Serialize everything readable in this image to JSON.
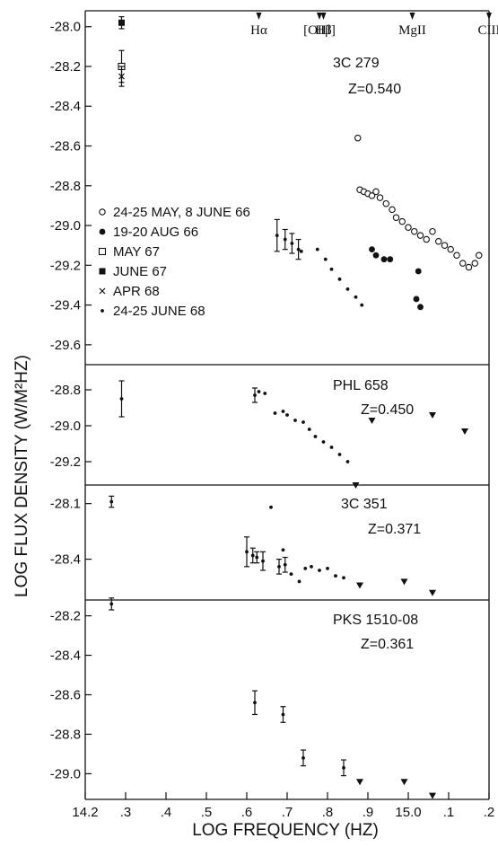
{
  "figure": {
    "xlabel": "LOG FREQUENCY (HZ)",
    "ylabel": "LOG FLUX DENSITY (W/M²HZ)",
    "x_ticks": [
      {
        "v": 14.2,
        "label": "14.2"
      },
      {
        "v": 14.3,
        "label": ".3"
      },
      {
        "v": 14.4,
        "label": ".4"
      },
      {
        "v": 14.5,
        "label": ".5"
      },
      {
        "v": 14.6,
        "label": ".6"
      },
      {
        "v": 14.7,
        "label": ".7"
      },
      {
        "v": 14.8,
        "label": ".8"
      },
      {
        "v": 14.9,
        "label": ".9"
      },
      {
        "v": 15.0,
        "label": "15.0"
      },
      {
        "v": 15.1,
        "label": ".1"
      },
      {
        "v": 15.2,
        "label": ".2"
      }
    ],
    "emission_lines": [
      {
        "label": "Hα",
        "x": 14.63
      },
      {
        "label": "[OIII]",
        "x": 14.78
      },
      {
        "label": "Hβ",
        "x": 14.79
      },
      {
        "label": "MgII",
        "x": 15.01
      },
      {
        "label": "CIII",
        "x": 15.2
      }
    ]
  },
  "legend": [
    {
      "marker": "open-circle",
      "label": "24-25 MAY, 8 JUNE 66"
    },
    {
      "marker": "filled-circle",
      "label": "19-20 AUG 66"
    },
    {
      "marker": "open-square",
      "label": "MAY 67"
    },
    {
      "marker": "filled-square",
      "label": "JUNE 67"
    },
    {
      "marker": "cross",
      "label": "APR 68"
    },
    {
      "marker": "dot",
      "label": "24-25 JUNE 68"
    }
  ],
  "chart_data": [
    {
      "type": "scatter",
      "object": "3C 279",
      "redshift": "Z=0.540",
      "ylim": [
        -29.7,
        -27.92
      ],
      "y_ticks": [
        -28.0,
        -28.2,
        -28.4,
        -28.6,
        -28.8,
        -29.0,
        -29.2,
        -29.4,
        -29.6
      ],
      "series": [
        {
          "marker": "open-circle",
          "points": [
            [
              14.875,
              -28.56
            ],
            [
              14.88,
              -28.82
            ],
            [
              14.89,
              -28.83
            ],
            [
              14.9,
              -28.84
            ],
            [
              14.91,
              -28.85
            ],
            [
              14.92,
              -28.83
            ],
            [
              14.93,
              -28.86
            ],
            [
              14.945,
              -28.89
            ],
            [
              14.96,
              -28.92
            ],
            [
              14.97,
              -28.96
            ],
            [
              14.985,
              -28.98
            ],
            [
              15.0,
              -29.01
            ],
            [
              15.015,
              -29.03
            ],
            [
              15.03,
              -29.05
            ],
            [
              15.045,
              -29.07
            ],
            [
              15.06,
              -29.03
            ],
            [
              15.075,
              -29.08
            ],
            [
              15.09,
              -29.1
            ],
            [
              15.105,
              -29.12
            ],
            [
              15.12,
              -29.15
            ],
            [
              15.135,
              -29.19
            ],
            [
              15.15,
              -29.21
            ],
            [
              15.165,
              -29.19
            ],
            [
              15.175,
              -29.15
            ]
          ]
        },
        {
          "marker": "filled-circle",
          "points": [
            [
              14.91,
              -29.12
            ],
            [
              14.92,
              -29.15
            ],
            [
              14.94,
              -29.17
            ],
            [
              14.955,
              -29.17
            ],
            [
              15.025,
              -29.23
            ],
            [
              15.02,
              -29.37
            ],
            [
              15.03,
              -29.41
            ]
          ]
        },
        {
          "marker": "open-square",
          "points": [
            [
              14.29,
              -28.2
            ]
          ],
          "errors": [
            0.08
          ]
        },
        {
          "marker": "filled-square",
          "points": [
            [
              14.29,
              -27.98
            ]
          ],
          "errors": [
            0.03
          ]
        },
        {
          "marker": "cross",
          "points": [
            [
              14.29,
              -28.25
            ]
          ],
          "errors": [
            0.05
          ]
        },
        {
          "marker": "dot",
          "points": [
            [
              14.735,
              -29.13
            ],
            [
              14.775,
              -29.12
            ],
            [
              14.795,
              -29.17
            ],
            [
              14.81,
              -29.22
            ],
            [
              14.83,
              -29.27
            ],
            [
              14.85,
              -29.32
            ],
            [
              14.87,
              -29.36
            ],
            [
              14.885,
              -29.4
            ]
          ]
        },
        {
          "marker": "dot-error",
          "points": [
            [
              14.675,
              -29.05
            ],
            [
              14.695,
              -29.07
            ],
            [
              14.712,
              -29.09
            ],
            [
              14.728,
              -29.12
            ]
          ],
          "errors": [
            0.08,
            0.05,
            0.05,
            0.05
          ]
        }
      ]
    },
    {
      "type": "scatter",
      "object": "PHL 658",
      "redshift": "Z=0.450",
      "ylim": [
        -29.33,
        -28.66
      ],
      "y_ticks": [
        -28.8,
        -29.0,
        -29.2
      ],
      "series": [
        {
          "marker": "dot-error",
          "points": [
            [
              14.29,
              -28.85
            ],
            [
              14.62,
              -28.83
            ]
          ],
          "errors": [
            0.1,
            0.04
          ]
        },
        {
          "marker": "dot",
          "points": [
            [
              14.63,
              -28.81
            ],
            [
              14.645,
              -28.82
            ],
            [
              14.67,
              -28.93
            ],
            [
              14.69,
              -28.92
            ],
            [
              14.7,
              -28.94
            ],
            [
              14.72,
              -28.97
            ],
            [
              14.74,
              -28.98
            ],
            [
              14.755,
              -29.02
            ],
            [
              14.77,
              -29.06
            ],
            [
              14.79,
              -29.09
            ],
            [
              14.81,
              -29.12
            ],
            [
              14.83,
              -29.16
            ],
            [
              14.85,
              -29.2
            ]
          ]
        },
        {
          "marker": "triangle-down",
          "points": [
            [
              14.91,
              -28.97
            ],
            [
              15.06,
              -28.94
            ],
            [
              15.14,
              -29.03
            ],
            [
              14.87,
              -29.33
            ]
          ]
        }
      ]
    },
    {
      "type": "scatter",
      "object": "3C 351",
      "redshift": "Z=0.371",
      "ylim": [
        -28.62,
        -28.0
      ],
      "y_ticks": [
        -28.1,
        -28.4
      ],
      "series": [
        {
          "marker": "dot-error",
          "points": [
            [
              14.265,
              -28.09
            ],
            [
              14.6,
              -28.36
            ],
            [
              14.615,
              -28.38
            ],
            [
              14.625,
              -28.39
            ],
            [
              14.64,
              -28.41
            ],
            [
              14.68,
              -28.44
            ],
            [
              14.695,
              -28.43
            ]
          ],
          "errors": [
            0.03,
            0.08,
            0.04,
            0.03,
            0.05,
            0.04,
            0.04
          ]
        },
        {
          "marker": "dot",
          "points": [
            [
              14.66,
              -28.12
            ],
            [
              14.69,
              -28.35
            ],
            [
              14.71,
              -28.48
            ],
            [
              14.73,
              -28.52
            ],
            [
              14.745,
              -28.45
            ],
            [
              14.76,
              -28.44
            ],
            [
              14.78,
              -28.46
            ],
            [
              14.8,
              -28.45
            ],
            [
              14.82,
              -28.49
            ],
            [
              14.84,
              -28.5
            ]
          ]
        },
        {
          "marker": "triangle-down",
          "points": [
            [
              14.88,
              -28.54
            ],
            [
              14.99,
              -28.52
            ],
            [
              15.06,
              -28.58
            ]
          ]
        }
      ]
    },
    {
      "type": "scatter",
      "object": "PKS 1510-08",
      "redshift": "Z=0.361",
      "ylim": [
        -29.13,
        -28.12
      ],
      "y_ticks": [
        -28.2,
        -28.4,
        -28.6,
        -28.8,
        -29.0
      ],
      "series": [
        {
          "marker": "dot-error",
          "points": [
            [
              14.265,
              -28.14
            ],
            [
              14.62,
              -28.64
            ],
            [
              14.69,
              -28.7
            ],
            [
              14.74,
              -28.92
            ],
            [
              14.84,
              -28.97
            ]
          ],
          "errors": [
            0.03,
            0.06,
            0.04,
            0.04,
            0.04
          ]
        },
        {
          "marker": "triangle-down",
          "points": [
            [
              14.88,
              -29.04
            ],
            [
              14.99,
              -29.04
            ],
            [
              15.06,
              -29.11
            ]
          ]
        }
      ]
    }
  ]
}
